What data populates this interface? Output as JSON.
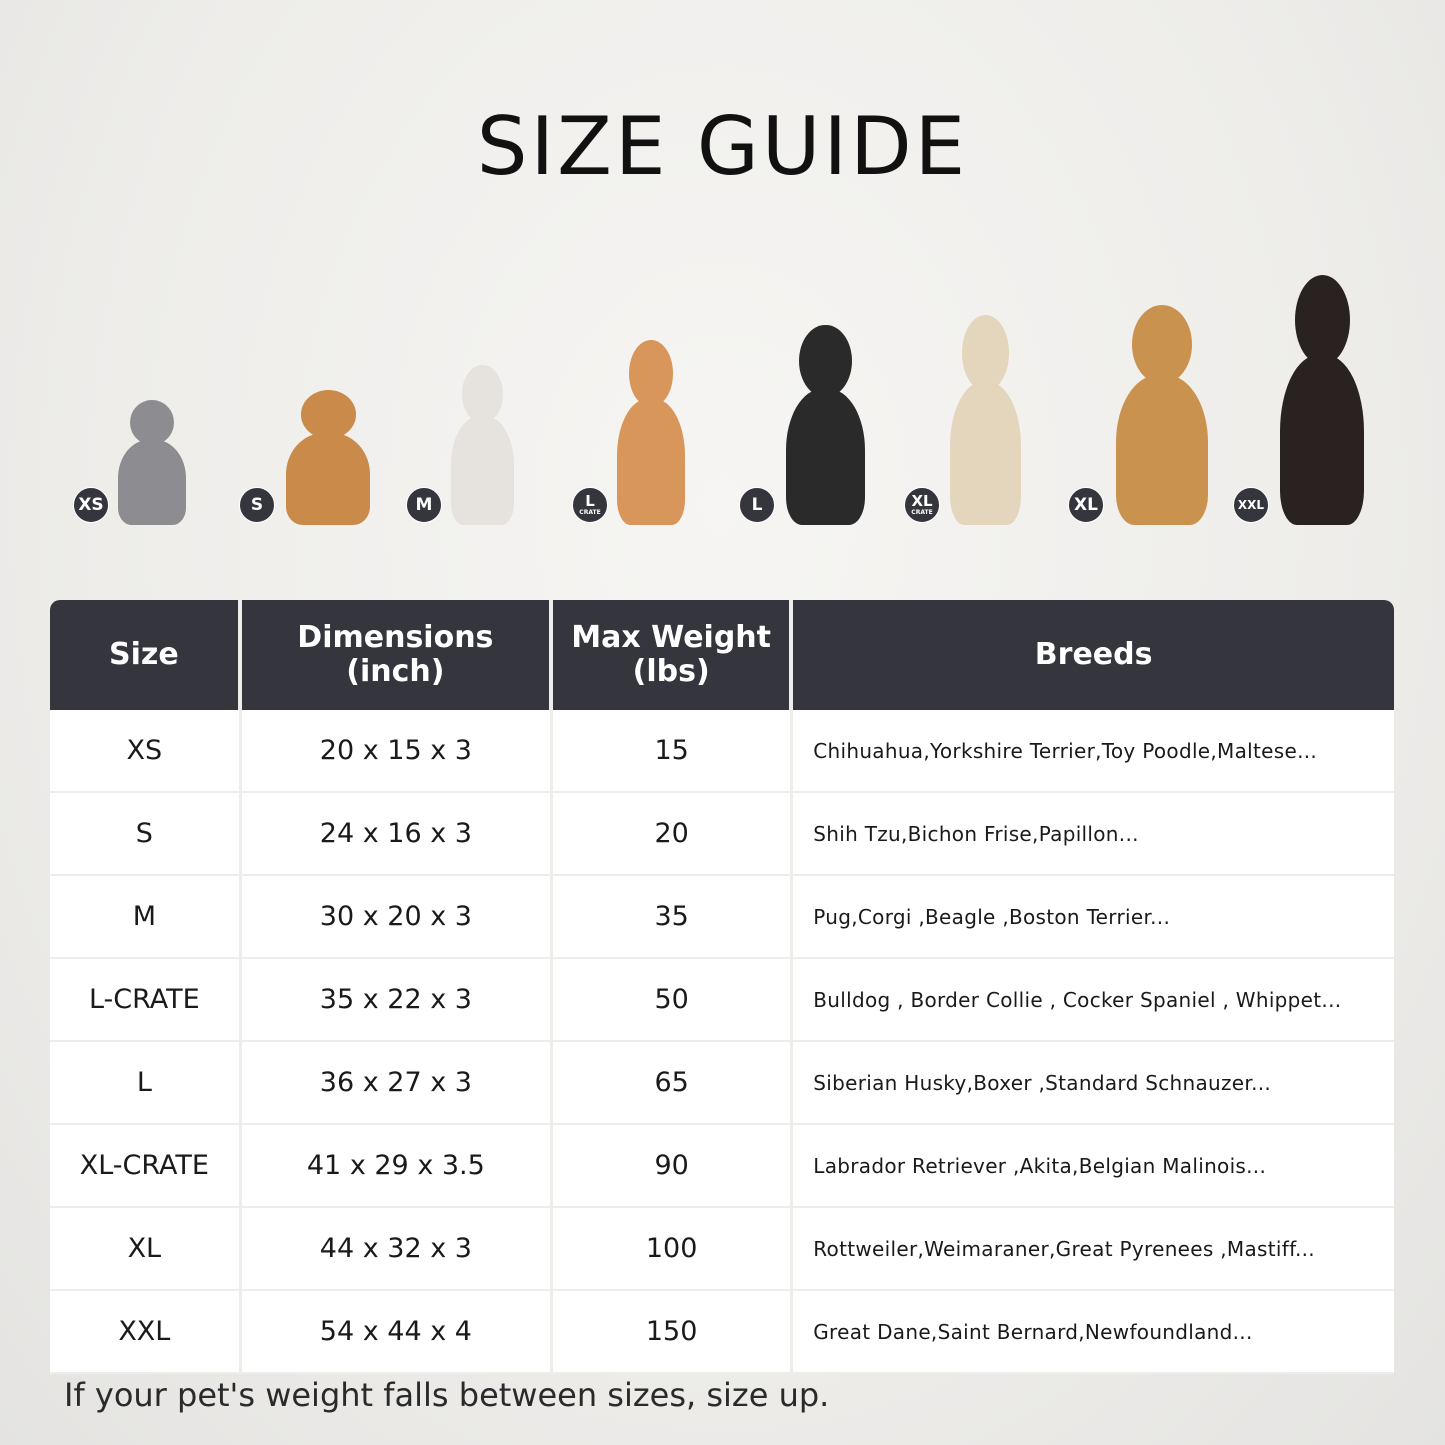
{
  "title": "SIZE GUIDE",
  "pets": [
    {
      "badge": "XS",
      "sub": "",
      "animal": "cat",
      "color": "#8d8c90"
    },
    {
      "badge": "S",
      "sub": "",
      "animal": "pomeranian",
      "color": "#c98a4a"
    },
    {
      "badge": "M",
      "sub": "",
      "animal": "french-bulldog",
      "color": "#e6e2de"
    },
    {
      "badge": "L",
      "sub": "CRATE",
      "animal": "shiba-inu",
      "color": "#d8965a"
    },
    {
      "badge": "L",
      "sub": "",
      "animal": "border-collie",
      "color": "#2a2a2a"
    },
    {
      "badge": "XL",
      "sub": "CRATE",
      "animal": "labrador",
      "color": "#e4d6bc"
    },
    {
      "badge": "XL",
      "sub": "",
      "animal": "golden-retriever",
      "color": "#c9934f"
    },
    {
      "badge": "XXL",
      "sub": "",
      "animal": "dobermann",
      "color": "#2a2220"
    }
  ],
  "table": {
    "headers": [
      "Size",
      "Dimensions\n(inch)",
      "Max Weight\n(lbs)",
      "Breeds"
    ],
    "rows": [
      [
        "XS",
        "20 x 15 x 3",
        "15",
        "Chihuahua,Yorkshire Terrier,Toy Poodle,Maltese..."
      ],
      [
        "S",
        "24 x 16 x 3",
        "20",
        "Shih Tzu,Bichon Frise,Papillon..."
      ],
      [
        "M",
        "30 x 20 x 3",
        "35",
        "Pug,Corgi ,Beagle ,Boston Terrier..."
      ],
      [
        "L-CRATE",
        "35 x 22 x 3",
        "50",
        "Bulldog , Border Collie , Cocker Spaniel , Whippet..."
      ],
      [
        "L",
        "36 x 27 x 3",
        "65",
        "Siberian Husky,Boxer ,Standard Schnauzer..."
      ],
      [
        "XL-CRATE",
        "41 x 29 x 3.5",
        "90",
        "Labrador Retriever ,Akita,Belgian Malinois..."
      ],
      [
        "XL",
        "44 x 32 x 3",
        "100",
        "Rottweiler,Weimaraner,Great Pyrenees ,Mastiff..."
      ],
      [
        "XXL",
        "54 x 44 x 4",
        "150",
        "Great Dane,Saint Bernard,Newfoundland..."
      ]
    ]
  },
  "note": "If your pet's weight falls between sizes, size up."
}
